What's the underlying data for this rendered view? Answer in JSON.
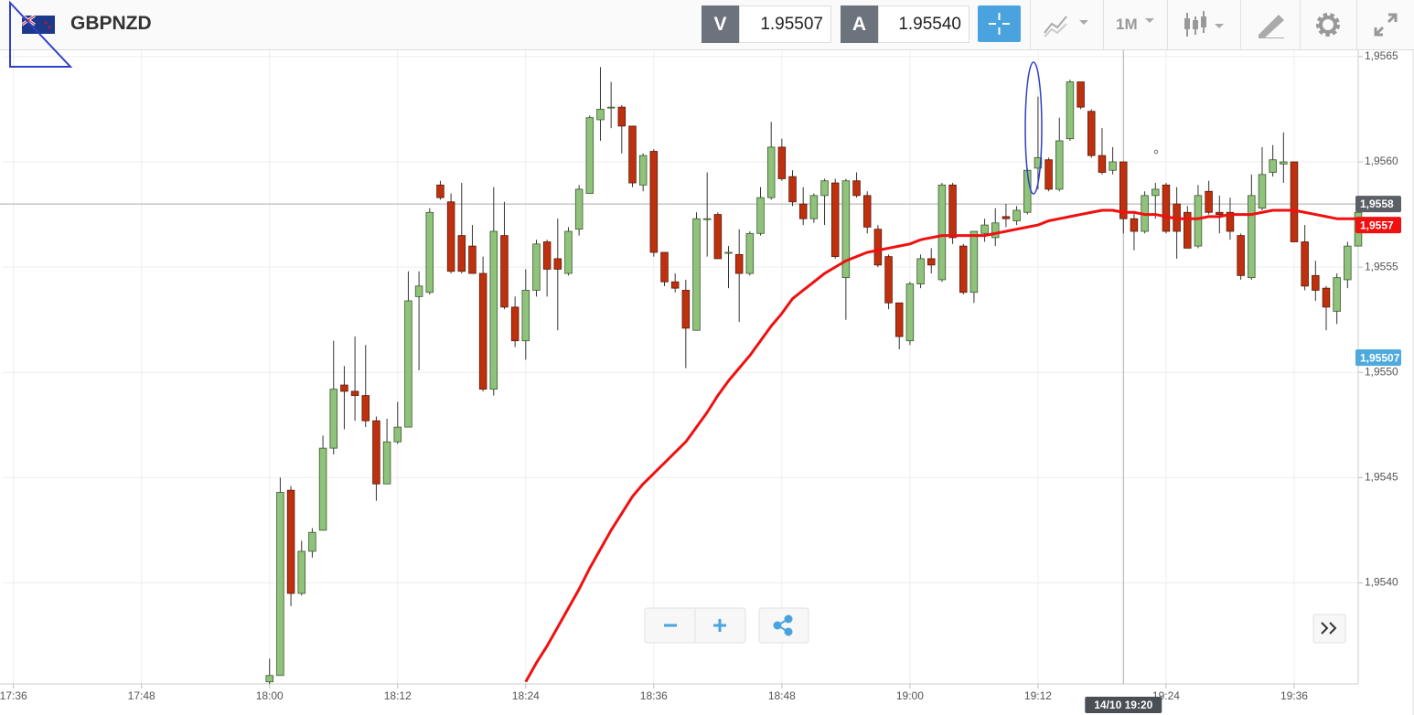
{
  "header": {
    "symbol": "GBPNZD",
    "bid_label": "V",
    "bid": "1.95507",
    "ask_label": "A",
    "ask": "1.95540",
    "timeframe": "1M"
  },
  "chart_data": {
    "type": "candlestick",
    "x": [
      "18:00",
      "18:01",
      "18:02",
      "18:03",
      "18:04",
      "18:05",
      "18:06",
      "18:07",
      "18:08",
      "18:09",
      "18:10",
      "18:11",
      "18:12",
      "18:13",
      "18:14",
      "18:15",
      "18:16",
      "18:17",
      "18:18",
      "18:19",
      "18:20",
      "18:21",
      "18:22",
      "18:23",
      "18:24",
      "18:25",
      "18:26",
      "18:27",
      "18:28",
      "18:29",
      "18:30",
      "18:31",
      "18:32",
      "18:33",
      "18:34",
      "18:35",
      "18:36",
      "18:37",
      "18:38",
      "18:39",
      "18:40",
      "18:41",
      "18:42",
      "18:43",
      "18:44",
      "18:45",
      "18:46",
      "18:47",
      "18:48",
      "18:49",
      "18:50",
      "18:51",
      "18:52",
      "18:53",
      "18:54",
      "18:55",
      "18:56",
      "18:57",
      "18:58",
      "18:59",
      "19:00",
      "19:01",
      "19:02",
      "19:03",
      "19:04",
      "19:05",
      "19:06",
      "19:07",
      "19:08",
      "19:09",
      "19:10",
      "19:11",
      "19:12",
      "19:13",
      "19:14",
      "19:15",
      "19:16",
      "19:17",
      "19:18",
      "19:19",
      "19:20",
      "19:21",
      "19:22",
      "19:23",
      "19:24",
      "19:25",
      "19:26",
      "19:27",
      "19:28",
      "19:29",
      "19:30",
      "19:31",
      "19:32",
      "19:33",
      "19:34",
      "19:35",
      "19:36",
      "19:37",
      "19:38",
      "19:39",
      "19:40",
      "19:41",
      "19:42"
    ],
    "open": [
      1.95353,
      1.95356,
      1.95444,
      1.95395,
      1.95415,
      1.95425,
      1.95464,
      1.95494,
      1.95491,
      1.95489,
      1.95477,
      1.95447,
      1.95467,
      1.95474,
      1.95536,
      1.95538,
      1.95589,
      1.95581,
      1.95565,
      1.9556,
      1.95547,
      1.95492,
      1.95565,
      1.95531,
      1.95515,
      1.95539,
      1.95562,
      1.95554,
      1.95547,
      1.95568,
      1.95585,
      1.9562,
      1.95626,
      1.95626,
      1.95617,
      1.95589,
      1.95605,
      1.95557,
      1.95543,
      1.95539,
      1.9552,
      1.95573,
      1.95575,
      1.95557,
      1.95556,
      1.95547,
      1.95566,
      1.95583,
      1.95607,
      1.95593,
      1.9558,
      1.95573,
      1.95584,
      1.9559,
      1.95545,
      1.95591,
      1.95584,
      1.95568,
      1.95555,
      1.95533,
      1.95515,
      1.95542,
      1.95554,
      1.95544,
      1.95589,
      1.9556,
      1.95538,
      1.95566,
      1.95564,
      1.95574,
      1.95572,
      1.95576,
      1.95597,
      1.95601,
      1.95587,
      1.95611,
      1.95638,
      1.95624,
      1.95603,
      1.95596,
      1.956,
      1.95573,
      1.95567,
      1.95584,
      1.95589,
      1.9558,
      1.95576,
      1.9556,
      1.95586,
      1.95576,
      1.95576,
      1.95565,
      1.95545,
      1.95578,
      1.95595,
      1.95599,
      1.956,
      1.95562,
      1.95546,
      1.9554,
      1.95529,
      1.95544,
      1.9556
    ],
    "high": [
      1.95364,
      1.9545,
      1.95446,
      1.9542,
      1.95426,
      1.9547,
      1.95515,
      1.95503,
      1.95517,
      1.95513,
      1.95479,
      1.95478,
      1.95486,
      1.95548,
      1.95548,
      1.95578,
      1.95591,
      1.95585,
      1.9559,
      1.9557,
      1.95555,
      1.95588,
      1.95581,
      1.95536,
      1.95549,
      1.95563,
      1.95563,
      1.95573,
      1.95569,
      1.95589,
      1.95622,
      1.95645,
      1.95638,
      1.95627,
      1.95617,
      1.95604,
      1.95606,
      1.95557,
      1.95547,
      1.95544,
      1.95576,
      1.95595,
      1.95576,
      1.9556,
      1.95568,
      1.95567,
      1.95588,
      1.95619,
      1.95611,
      1.95596,
      1.95588,
      1.95585,
      1.95592,
      1.95592,
      1.95592,
      1.95595,
      1.95586,
      1.9557,
      1.95556,
      1.95533,
      1.95543,
      1.95556,
      1.95559,
      1.9559,
      1.9559,
      1.95561,
      1.95567,
      1.95573,
      1.95578,
      1.9558,
      1.95579,
      1.95597,
      1.95631,
      1.95602,
      1.95621,
      1.95639,
      1.95638,
      1.95625,
      1.95616,
      1.95607,
      1.956,
      1.95576,
      1.95586,
      1.9559,
      1.9559,
      1.95588,
      1.95579,
      1.95589,
      1.95591,
      1.95584,
      1.95583,
      1.95566,
      1.95594,
      1.95607,
      1.95608,
      1.95614,
      1.956,
      1.9557,
      1.95553,
      1.95541,
      1.95547,
      1.95562,
      1.95578
    ],
    "low": [
      1.95352,
      1.95356,
      1.95389,
      1.95394,
      1.95412,
      1.95425,
      1.95461,
      1.95473,
      1.95477,
      1.95474,
      1.95439,
      1.95447,
      1.95466,
      1.95474,
      1.95501,
      1.95537,
      1.95582,
      1.95547,
      1.95547,
      1.95547,
      1.95491,
      1.95489,
      1.9553,
      1.95512,
      1.95506,
      1.95536,
      1.95536,
      1.9552,
      1.95546,
      1.95565,
      1.95585,
      1.9561,
      1.95616,
      1.95604,
      1.95588,
      1.95586,
      1.95555,
      1.95541,
      1.95538,
      1.95502,
      1.9552,
      1.95555,
      1.95554,
      1.9554,
      1.95524,
      1.95546,
      1.95565,
      1.95582,
      1.95591,
      1.95579,
      1.9557,
      1.95571,
      1.9557,
      1.95554,
      1.95525,
      1.95583,
      1.95566,
      1.9555,
      1.9553,
      1.95511,
      1.95513,
      1.9554,
      1.95547,
      1.95543,
      1.95561,
      1.95537,
      1.95533,
      1.95562,
      1.9556,
      1.95569,
      1.9557,
      1.95575,
      1.95587,
      1.95586,
      1.95586,
      1.9561,
      1.95625,
      1.95602,
      1.95594,
      1.95594,
      1.95566,
      1.95558,
      1.95566,
      1.95573,
      1.95566,
      1.95554,
      1.95559,
      1.95559,
      1.95575,
      1.95566,
      1.95563,
      1.95544,
      1.95544,
      1.95577,
      1.95593,
      1.9559,
      1.95562,
      1.95539,
      1.95534,
      1.9552,
      1.95523,
      1.9554,
      1.9556
    ],
    "close": [
      1.95356,
      1.95443,
      1.95395,
      1.95415,
      1.95424,
      1.95464,
      1.95492,
      1.95491,
      1.95489,
      1.95477,
      1.95447,
      1.95467,
      1.95474,
      1.95534,
      1.95541,
      1.95576,
      1.95583,
      1.95548,
      1.95548,
      1.95547,
      1.95492,
      1.95567,
      1.95531,
      1.95515,
      1.95539,
      1.95561,
      1.95549,
      1.95549,
      1.95567,
      1.95587,
      1.95621,
      1.95625,
      1.95626,
      1.95617,
      1.9559,
      1.95603,
      1.95557,
      1.95543,
      1.9554,
      1.95521,
      1.95573,
      1.95573,
      1.95554,
      1.95557,
      1.95547,
      1.95566,
      1.95583,
      1.95607,
      1.95592,
      1.95581,
      1.95573,
      1.95584,
      1.95591,
      1.95555,
      1.95591,
      1.95584,
      1.95569,
      1.95551,
      1.95533,
      1.95517,
      1.95542,
      1.95554,
      1.95551,
      1.95589,
      1.95564,
      1.95538,
      1.95567,
      1.9557,
      1.95571,
      1.95573,
      1.95577,
      1.95596,
      1.95602,
      1.95587,
      1.9561,
      1.95638,
      1.95626,
      1.95603,
      1.95595,
      1.956,
      1.95573,
      1.95567,
      1.95584,
      1.95587,
      1.95567,
      1.95567,
      1.95559,
      1.95584,
      1.95576,
      1.95575,
      1.95567,
      1.95546,
      1.95584,
      1.95594,
      1.95601,
      1.956,
      1.95562,
      1.95541,
      1.95539,
      1.95531,
      1.95545,
      1.9556,
      1.95576
    ],
    "up_color": "#8fc27b",
    "down_color": "#bf300f",
    "overlay": {
      "type": "line",
      "color": "#f01010",
      "values": [
        null,
        null,
        null,
        null,
        null,
        null,
        null,
        null,
        null,
        null,
        null,
        null,
        null,
        null,
        null,
        null,
        null,
        null,
        null,
        null,
        null,
        null,
        null,
        null,
        1.95353,
        1.95362,
        1.9537,
        1.95379,
        1.95388,
        1.95397,
        1.95407,
        1.95416,
        1.95425,
        1.95433,
        1.95441,
        1.95447,
        1.95452,
        1.95457,
        1.95462,
        1.95467,
        1.95474,
        1.95481,
        1.95489,
        1.95496,
        1.95502,
        1.95508,
        1.95515,
        1.95522,
        1.95528,
        1.95535,
        1.95539,
        1.95543,
        1.95547,
        1.9555,
        1.95553,
        1.95555,
        1.95557,
        1.95558,
        1.95559,
        1.9556,
        1.95561,
        1.95563,
        1.95564,
        1.95565,
        1.95565,
        1.95565,
        1.95565,
        1.95565,
        1.95566,
        1.95567,
        1.95568,
        1.95569,
        1.9557,
        1.95572,
        1.95573,
        1.95574,
        1.95575,
        1.95576,
        1.95577,
        1.95577,
        1.95576,
        1.95576,
        1.95575,
        1.95575,
        1.95574,
        1.95573,
        1.95573,
        1.95573,
        1.95574,
        1.95574,
        1.95575,
        1.95575,
        1.95575,
        1.95576,
        1.95577,
        1.95577,
        1.95577,
        1.95576,
        1.95575,
        1.95574,
        1.95573,
        1.95573,
        1.95573
      ]
    },
    "xlim": [
      "17:35",
      "19:42"
    ],
    "xticks": [
      "17:36",
      "17:48",
      "18:00",
      "18:12",
      "18:24",
      "18:36",
      "18:48",
      "19:00",
      "19:12",
      "19:24",
      "19:36"
    ],
    "ylim": [
      1.95352,
      1.95653
    ],
    "yticks": [
      {
        "value": 1.954,
        "label": "1,9540"
      },
      {
        "value": 1.9545,
        "label": "1,9545"
      },
      {
        "value": 1.955,
        "label": "1,9550"
      },
      {
        "value": 1.9555,
        "label": "1,9555"
      },
      {
        "value": 1.956,
        "label": "1,9560"
      },
      {
        "value": 1.9565,
        "label": "1,9565"
      }
    ],
    "grid": true,
    "crosshair": {
      "x": "19:20",
      "x_label": "14/10 19:20",
      "y": {
        "value": 1.9558,
        "label": "1,9558"
      }
    },
    "price_labels": [
      {
        "value": 1.9557,
        "label": "1,9557",
        "color": "#f01010"
      },
      {
        "value": 1.95507,
        "label": "1,95507",
        "color": "#4ea9dd"
      }
    ]
  }
}
